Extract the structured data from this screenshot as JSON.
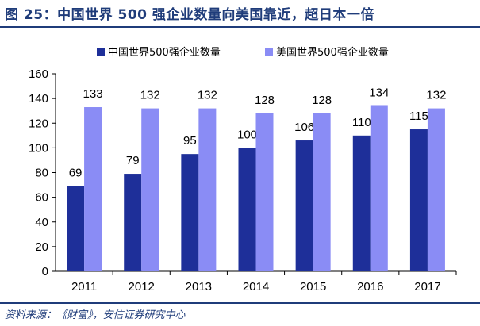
{
  "header": {
    "title": "图 25：中国世界 500 强企业数量向美国靠近，超日本一倍"
  },
  "footer": {
    "source": "资料来源：《财富》，安信证券研究中心"
  },
  "colors": {
    "china": "#1e2f99",
    "usa": "#8a8cf5",
    "rule": "#1f3c7a"
  },
  "chart_data": {
    "type": "bar",
    "title": "",
    "xlabel": "",
    "ylabel": "",
    "ylim": [
      0,
      160
    ],
    "yticks": [
      0,
      20,
      40,
      60,
      80,
      100,
      120,
      140,
      160
    ],
    "grid": false,
    "legend_position": "top",
    "categories": [
      "2011",
      "2012",
      "2013",
      "2014",
      "2015",
      "2016",
      "2017"
    ],
    "series": [
      {
        "name": "中国世界500强企业数量",
        "values": [
          69,
          79,
          95,
          100,
          106,
          110,
          115
        ]
      },
      {
        "name": "美国世界500强企业数量",
        "values": [
          133,
          132,
          132,
          128,
          128,
          134,
          132
        ]
      }
    ]
  }
}
